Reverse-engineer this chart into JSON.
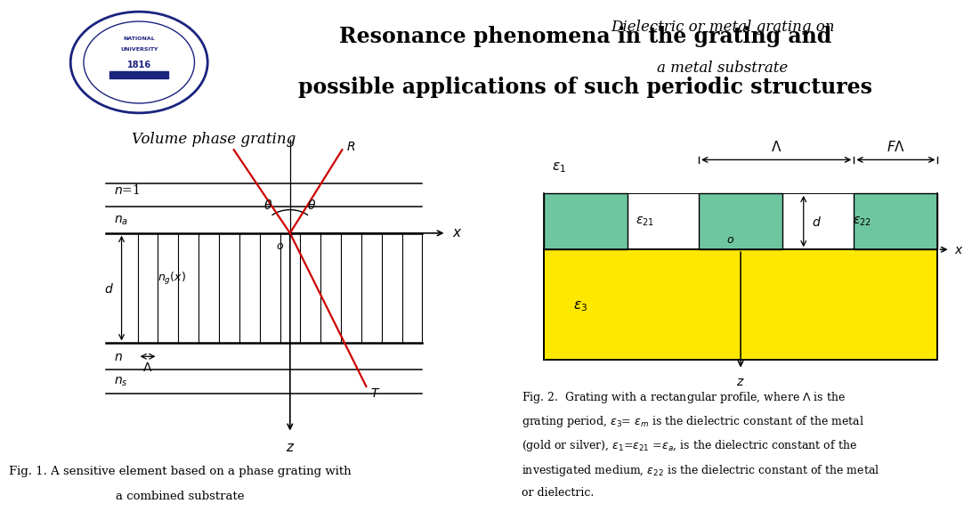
{
  "title_line1": "Resonance phenomena in the grating and",
  "title_line2": "possible applications of such periodic structures",
  "left_subtitle": "Volume phase grating",
  "right_subtitle1": "Dielectric or metal grating on",
  "right_subtitle2": "a metal substrate",
  "fig1_caption_l1": "Fig. 1. A sensitive element based on a phase grating with",
  "fig1_caption_l2": "a combined substrate",
  "grating_color": "#6EC6A0",
  "substrate_color": "#FFE800",
  "bg_color": "#FFFFFF",
  "red_line_color": "#CC0000"
}
